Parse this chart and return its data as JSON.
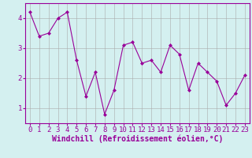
{
  "x": [
    0,
    1,
    2,
    3,
    4,
    5,
    6,
    7,
    8,
    9,
    10,
    11,
    12,
    13,
    14,
    15,
    16,
    17,
    18,
    19,
    20,
    21,
    22,
    23
  ],
  "y": [
    4.2,
    3.4,
    3.5,
    4.0,
    4.2,
    2.6,
    1.4,
    2.2,
    0.8,
    1.6,
    3.1,
    3.2,
    2.5,
    2.6,
    2.2,
    3.1,
    2.8,
    1.6,
    2.5,
    2.2,
    1.9,
    1.1,
    1.5,
    2.1
  ],
  "line_color": "#990099",
  "marker": "D",
  "marker_size": 2.0,
  "bg_color": "#d4f0f0",
  "grid_color": "#aaaaaa",
  "xlabel": "Windchill (Refroidissement éolien,°C)",
  "xlim": [
    -0.5,
    23.5
  ],
  "ylim": [
    0.5,
    4.5
  ],
  "yticks": [
    1,
    2,
    3,
    4
  ],
  "xticks": [
    0,
    1,
    2,
    3,
    4,
    5,
    6,
    7,
    8,
    9,
    10,
    11,
    12,
    13,
    14,
    15,
    16,
    17,
    18,
    19,
    20,
    21,
    22,
    23
  ],
  "xlabel_fontsize": 7.0,
  "tick_fontsize": 6.5
}
